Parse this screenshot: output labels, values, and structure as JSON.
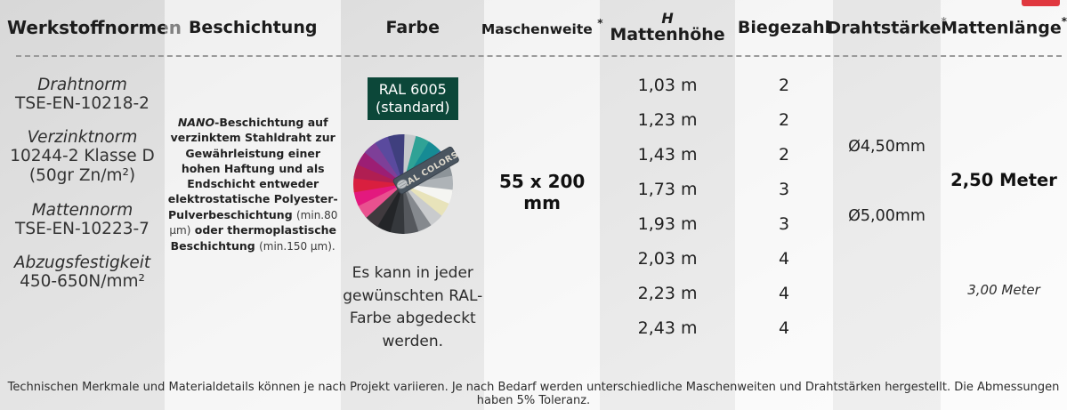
{
  "colors": {
    "badge_green": "#0c4739",
    "red_tab": "#e0383f",
    "banner_slate": "#4a5560"
  },
  "header": {
    "werkstoffnormen": "Werkstoffnormen",
    "beschichtung": "Beschichtung",
    "farbe": "Farbe",
    "maschenweite": "Maschenweite",
    "mattenhoehe_line1": "H",
    "mattenhoehe_line2": "Mattenhöhe",
    "biegezahl": "Biegezahl",
    "drahtstaerke": "Drahtstärke",
    "mattenlaenge": "Mattenlänge",
    "asterisk": "*"
  },
  "werkstoffnormen": {
    "groups": [
      {
        "label": "Drahtnorm",
        "lines": [
          "TSE-EN-10218-2"
        ]
      },
      {
        "label": "Verzinktnorm",
        "lines": [
          "10244-2 Klasse D",
          "(50gr Zn/m²)"
        ]
      },
      {
        "label": "Mattennorm",
        "lines": [
          "TSE-EN-10223-7"
        ]
      },
      {
        "label": "Abzugsfestigkeit",
        "lines": [
          "450-650N/mm²"
        ]
      }
    ]
  },
  "beschichtung": {
    "nano": "NANO",
    "seg1": "-Beschichtung auf verzinktem Stahldraht zur Gewährleistung einer hohen Haftung und als Endschicht entweder elektrostatische Polyester-Pulverbeschichtung ",
    "seg2": "(min.80 µm)",
    "seg3": " oder thermoplastische Beschichtung ",
    "seg4": "(min.150 µm)."
  },
  "farbe": {
    "badge_line1": "RAL 6005",
    "badge_line2": "(standard)",
    "fan_label": "RAL COLORS",
    "fan_colors": [
      "#c6c9cc",
      "#2fa296",
      "#168b94",
      "#3a6ea8",
      "#8d9499",
      "#aeb3b7",
      "#f5f5f2",
      "#e8e3ba",
      "#c9cbcd",
      "#85898e",
      "#55585d",
      "#35383c",
      "#232528",
      "#3f3a3e",
      "#e9518f",
      "#e3197e",
      "#d91f3f",
      "#b01e52",
      "#9c1e74",
      "#7e3f98",
      "#5a4a9e",
      "#3f3f7e"
    ],
    "note": "Es kann in jeder gewünschten RAL-Farbe abgedeckt werden."
  },
  "maschenweite": {
    "value": "55 x 200 mm"
  },
  "table": {
    "rows": [
      {
        "hoehe": "1,03 m",
        "biegezahl": "2"
      },
      {
        "hoehe": "1,23 m",
        "biegezahl": "2"
      },
      {
        "hoehe": "1,43 m",
        "biegezahl": "2"
      },
      {
        "hoehe": "1,73 m",
        "biegezahl": "3"
      },
      {
        "hoehe": "1,93 m",
        "biegezahl": "3"
      },
      {
        "hoehe": "2,03 m",
        "biegezahl": "4"
      },
      {
        "hoehe": "2,23 m",
        "biegezahl": "4"
      },
      {
        "hoehe": "2,43 m",
        "biegezahl": "4"
      }
    ]
  },
  "drahtstaerke": {
    "values": [
      "Ø4,50mm",
      "Ø5,00mm"
    ]
  },
  "mattenlaenge": {
    "primary": "2,50 Meter",
    "secondary": "3,00 Meter"
  },
  "footer": "Technischen Merkmale und Materialdetails können je nach Projekt variieren. Je nach Bedarf werden unterschiedliche Maschenweiten und Drahtstärken hergestellt. Die Abmessungen haben 5% Toleranz."
}
